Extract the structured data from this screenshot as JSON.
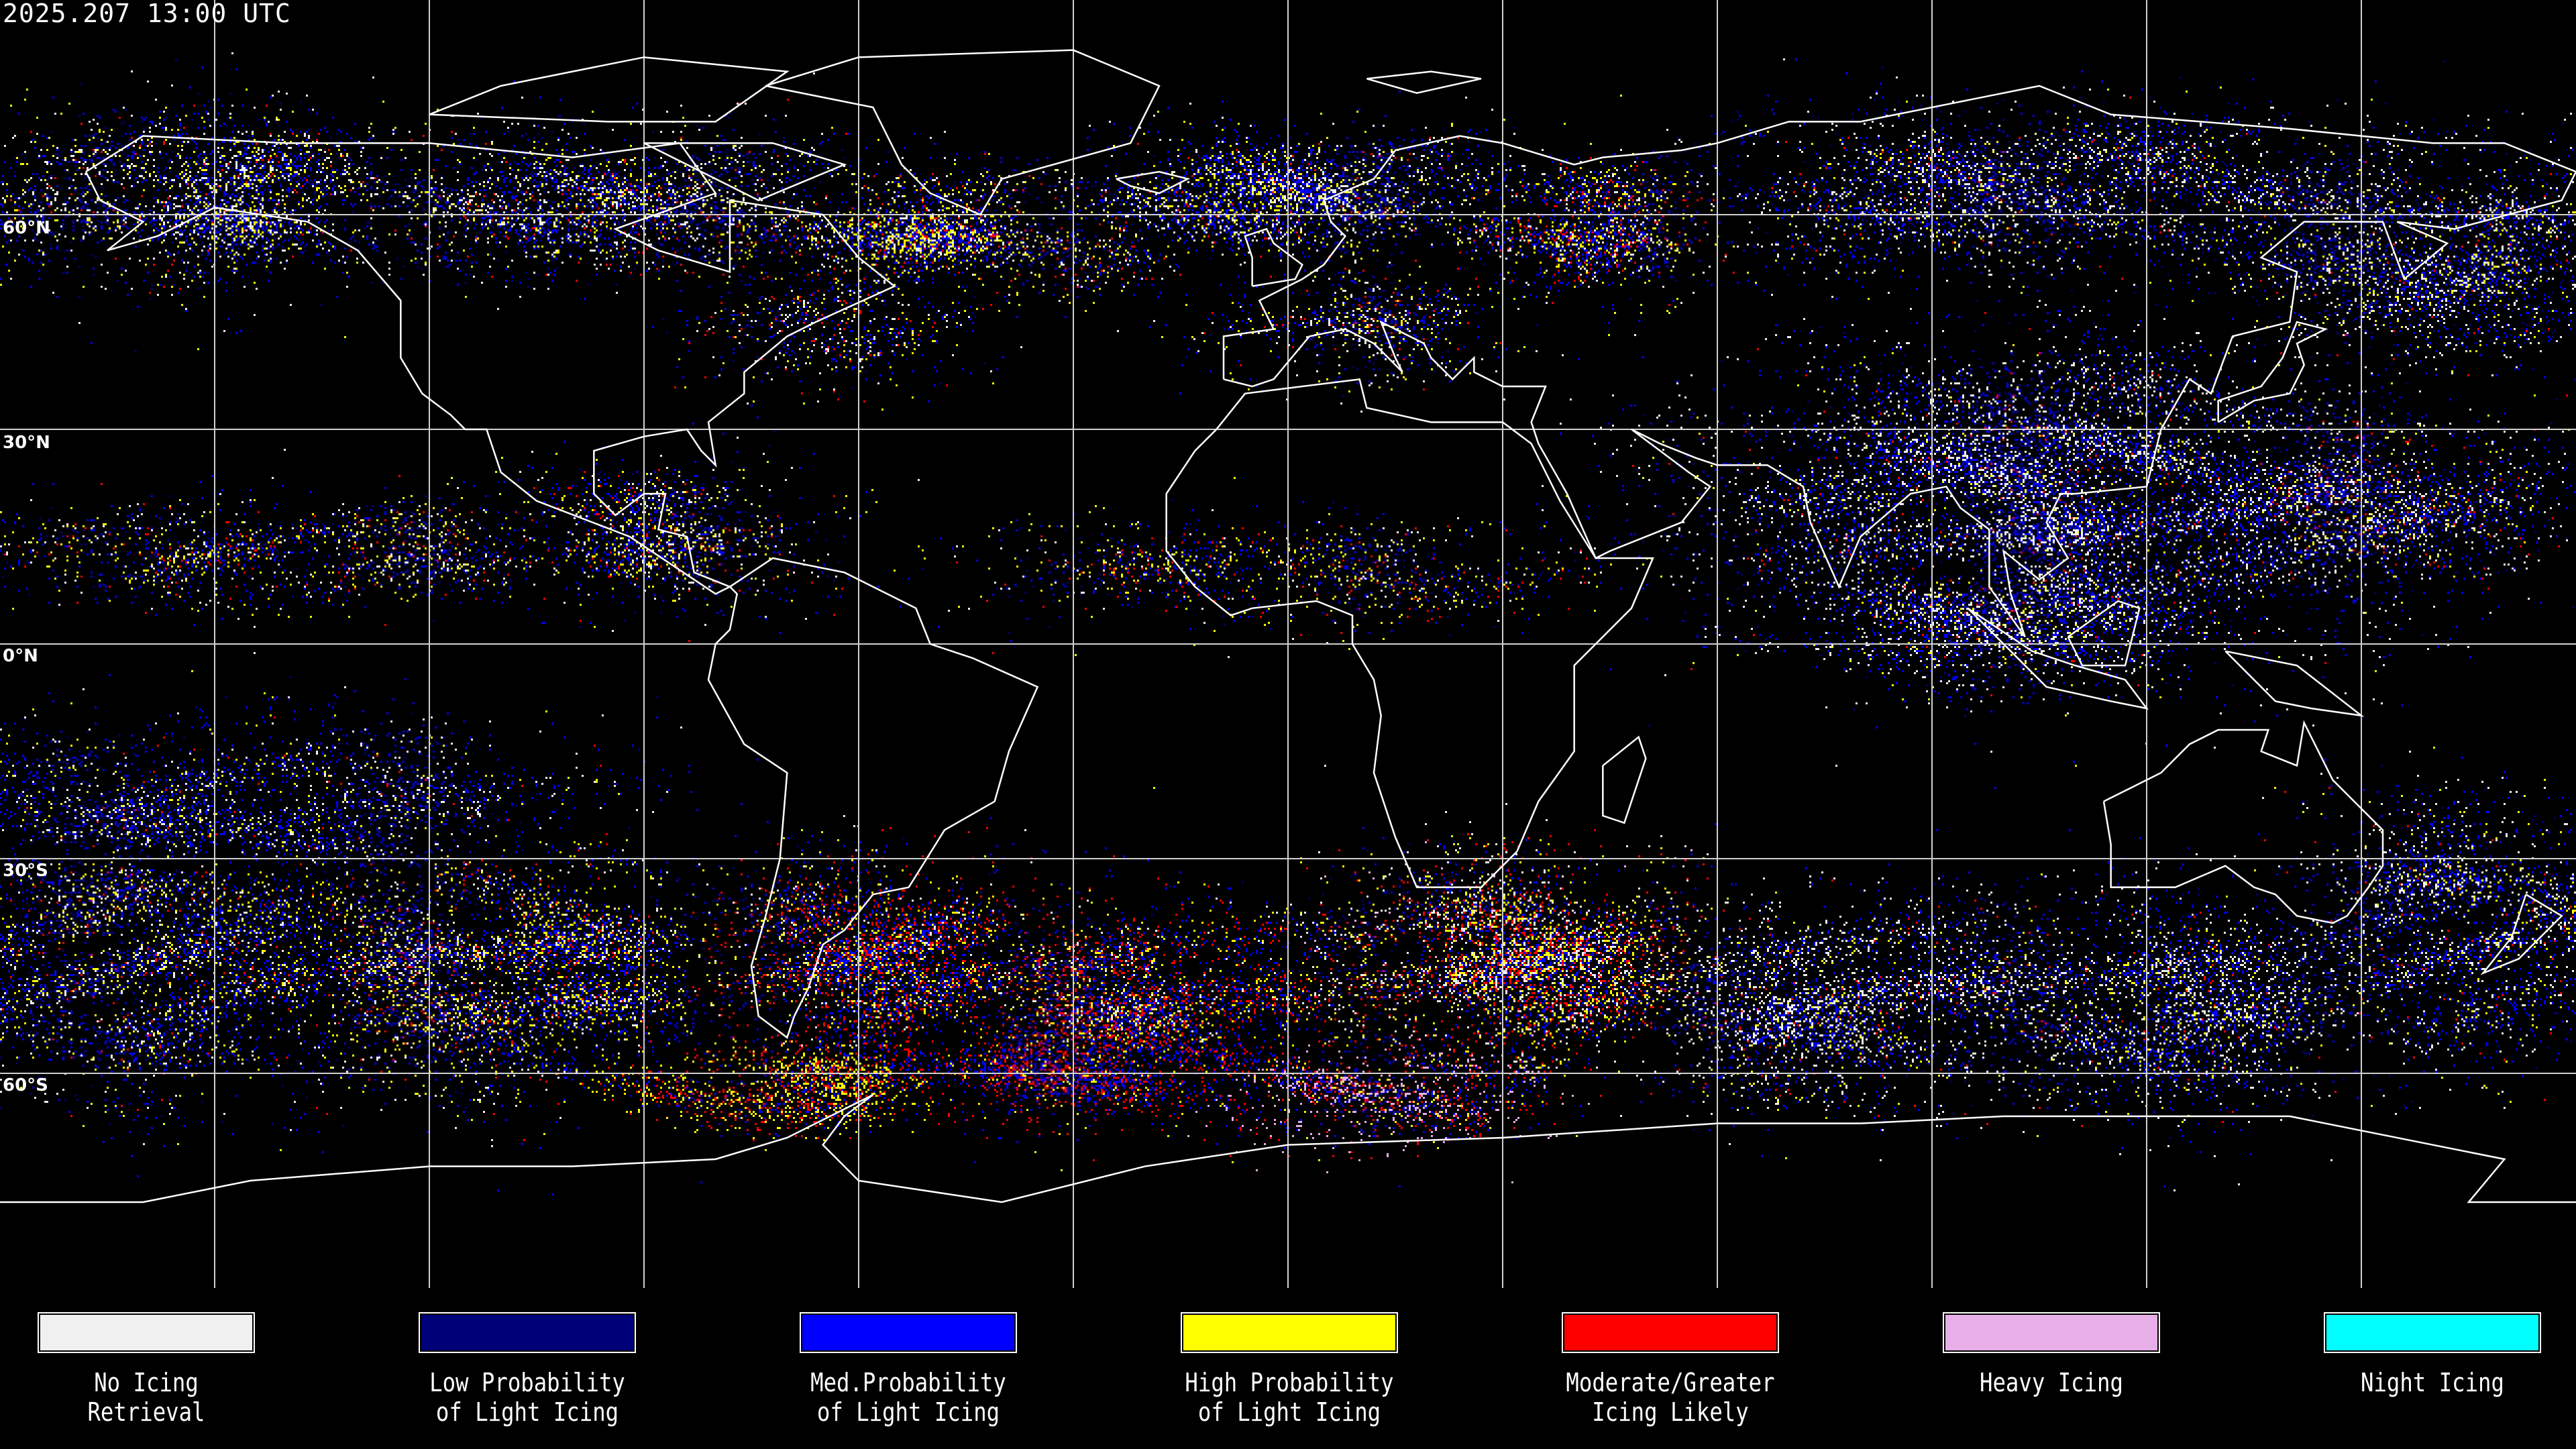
{
  "header": {
    "timestamp": "2025.207 13:00 UTC"
  },
  "map": {
    "projection": "equirectangular",
    "grid_spacing_deg": 30,
    "latitude_labels": [
      "60°N",
      "30°N",
      "0°N",
      "30°S",
      "60°S"
    ],
    "background_color": "#000000",
    "coastline_color": "#ffffff",
    "grid_color": "#d0d0d0"
  },
  "legend": {
    "items": [
      {
        "line1": "No Icing",
        "line2": "Retrieval",
        "color": "#f0f0f0"
      },
      {
        "line1": "Low Probability",
        "line2": "of Light Icing",
        "color": "#000078"
      },
      {
        "line1": "Med.Probability",
        "line2": "of Light Icing",
        "color": "#0000ff"
      },
      {
        "line1": "High Probability",
        "line2": "of Light Icing",
        "color": "#ffff00"
      },
      {
        "line1": "Moderate/Greater",
        "line2": "Icing Likely",
        "color": "#ff0000"
      },
      {
        "line1": "Heavy Icing",
        "line2": "",
        "color": "#e8aee8"
      },
      {
        "line1": "Night Icing",
        "line2": "",
        "color": "#00ffff"
      }
    ]
  }
}
